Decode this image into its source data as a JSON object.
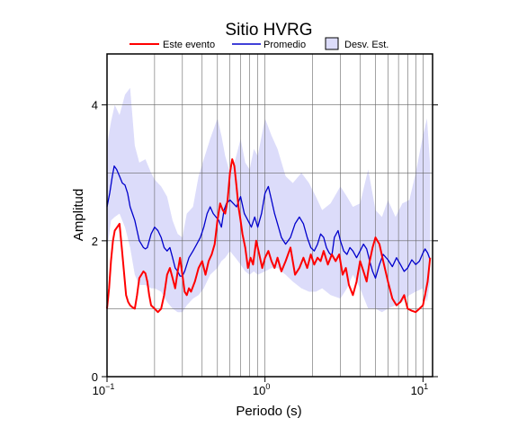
{
  "chart_data": {
    "type": "line",
    "title": "Sitio HVRG",
    "xlabel": "Periodo (s)",
    "ylabel": "Amplitud",
    "xscale": "log",
    "xlim": [
      0.1,
      11.5
    ],
    "ylim": [
      0,
      4.75
    ],
    "yticks": [
      {
        "value": 0,
        "label": "0"
      },
      {
        "value": 2,
        "label": "2"
      },
      {
        "value": 4,
        "label": "4"
      }
    ],
    "xticks": [
      {
        "value": 0.1,
        "base": "10",
        "exp": "−1"
      },
      {
        "value": 1,
        "base": "10",
        "exp": "0"
      },
      {
        "value": 10,
        "base": "10",
        "exp": "1"
      }
    ],
    "grid": true,
    "legend_position": "top",
    "legend": {
      "event": "Este evento",
      "mean": "Promedio",
      "std": "Desv. Est."
    },
    "colors": {
      "event": "#ff0000",
      "mean": "#0000cc",
      "std_fill": "#dcdcfa",
      "std_stroke": "#000000"
    },
    "std_band": {
      "x": [
        0.1,
        0.106,
        0.112,
        0.12,
        0.13,
        0.14,
        0.15,
        0.16,
        0.175,
        0.19,
        0.2,
        0.22,
        0.24,
        0.26,
        0.28,
        0.3,
        0.32,
        0.35,
        0.38,
        0.41,
        0.45,
        0.5,
        0.53,
        0.56,
        0.6,
        0.65,
        0.7,
        0.75,
        0.8,
        0.85,
        0.9,
        1.0,
        1.1,
        1.2,
        1.35,
        1.5,
        1.7,
        1.9,
        2.1,
        2.3,
        2.6,
        3.0,
        3.3,
        3.6,
        4.0,
        4.5,
        5.0,
        5.5,
        6.0,
        6.7,
        7.4,
        8.2,
        9.0,
        10.0,
        10.6,
        11.1
      ],
      "upper": [
        3.4,
        3.75,
        4.0,
        3.85,
        4.15,
        4.25,
        3.4,
        3.15,
        3.2,
        3.0,
        2.9,
        2.8,
        2.65,
        2.3,
        2.1,
        2.05,
        2.4,
        2.5,
        2.95,
        3.2,
        3.5,
        3.8,
        3.55,
        3.25,
        3.0,
        3.2,
        3.5,
        3.15,
        3.05,
        3.35,
        3.25,
        3.8,
        3.55,
        3.35,
        2.95,
        2.85,
        3.0,
        2.85,
        2.65,
        2.45,
        2.55,
        2.8,
        2.65,
        2.5,
        2.55,
        3.05,
        2.45,
        2.35,
        2.6,
        2.35,
        2.55,
        2.6,
        3.0,
        3.55,
        3.8,
        3.1
      ],
      "lower": [
        1.85,
        2.3,
        2.35,
        2.4,
        2.2,
        1.9,
        1.5,
        1.35,
        1.35,
        1.3,
        1.3,
        1.25,
        1.1,
        1.0,
        0.95,
        0.95,
        1.05,
        1.15,
        1.2,
        1.3,
        1.5,
        1.6,
        1.7,
        1.75,
        1.85,
        1.75,
        1.65,
        1.55,
        1.5,
        1.55,
        1.5,
        1.55,
        1.6,
        1.6,
        1.5,
        1.4,
        1.3,
        1.25,
        1.25,
        1.3,
        1.2,
        1.15,
        1.3,
        1.5,
        1.3,
        1.0,
        1.0,
        0.95,
        1.0,
        1.05,
        1.1,
        1.2,
        1.25,
        1.3,
        1.1,
        1.4
      ]
    },
    "series": [
      {
        "name": "Promedio",
        "key": "mean",
        "x": [
          0.1,
          0.104,
          0.108,
          0.111,
          0.115,
          0.12,
          0.125,
          0.13,
          0.135,
          0.14,
          0.145,
          0.15,
          0.155,
          0.16,
          0.165,
          0.17,
          0.175,
          0.18,
          0.19,
          0.2,
          0.21,
          0.22,
          0.23,
          0.24,
          0.25,
          0.26,
          0.27,
          0.28,
          0.29,
          0.3,
          0.31,
          0.32,
          0.33,
          0.35,
          0.37,
          0.39,
          0.41,
          0.43,
          0.45,
          0.47,
          0.49,
          0.51,
          0.53,
          0.55,
          0.57,
          0.6,
          0.63,
          0.66,
          0.7,
          0.74,
          0.78,
          0.82,
          0.86,
          0.9,
          0.95,
          1.0,
          1.05,
          1.1,
          1.15,
          1.2,
          1.27,
          1.35,
          1.45,
          1.55,
          1.65,
          1.75,
          1.85,
          1.95,
          2.05,
          2.15,
          2.25,
          2.35,
          2.45,
          2.55,
          2.65,
          2.75,
          2.9,
          3.0,
          3.15,
          3.3,
          3.45,
          3.6,
          3.8,
          4.0,
          4.2,
          4.4,
          4.6,
          4.8,
          5.0,
          5.3,
          5.6,
          6.0,
          6.4,
          6.8,
          7.2,
          7.6,
          8.0,
          8.5,
          9.0,
          9.5,
          10.0,
          10.3,
          10.7,
          11.1
        ],
        "y": [
          2.5,
          2.7,
          2.95,
          3.1,
          3.05,
          2.95,
          2.85,
          2.82,
          2.7,
          2.5,
          2.4,
          2.3,
          2.15,
          2.0,
          1.95,
          1.9,
          1.88,
          1.9,
          2.1,
          2.2,
          2.15,
          2.05,
          1.9,
          1.85,
          1.9,
          1.75,
          1.6,
          1.55,
          1.48,
          1.48,
          1.55,
          1.65,
          1.75,
          1.85,
          1.95,
          2.05,
          2.2,
          2.4,
          2.5,
          2.4,
          2.35,
          2.3,
          2.2,
          2.45,
          2.55,
          2.6,
          2.55,
          2.5,
          2.65,
          2.4,
          2.3,
          2.2,
          2.35,
          2.2,
          2.4,
          2.7,
          2.8,
          2.6,
          2.4,
          2.25,
          2.05,
          1.95,
          2.05,
          2.25,
          2.35,
          2.25,
          2.05,
          1.9,
          1.85,
          1.95,
          2.1,
          2.05,
          1.9,
          1.82,
          1.78,
          2.05,
          2.15,
          2.0,
          1.85,
          1.8,
          1.9,
          1.85,
          1.75,
          1.85,
          1.95,
          1.88,
          1.7,
          1.55,
          1.45,
          1.65,
          1.8,
          1.72,
          1.62,
          1.75,
          1.65,
          1.55,
          1.6,
          1.72,
          1.65,
          1.7,
          1.82,
          1.88,
          1.82,
          1.72
        ]
      },
      {
        "name": "Este evento",
        "key": "event",
        "x": [
          0.1,
          0.103,
          0.106,
          0.109,
          0.112,
          0.116,
          0.12,
          0.124,
          0.128,
          0.132,
          0.136,
          0.14,
          0.145,
          0.15,
          0.155,
          0.16,
          0.165,
          0.17,
          0.175,
          0.18,
          0.185,
          0.19,
          0.2,
          0.21,
          0.22,
          0.23,
          0.24,
          0.25,
          0.26,
          0.27,
          0.28,
          0.29,
          0.3,
          0.31,
          0.32,
          0.33,
          0.34,
          0.36,
          0.38,
          0.4,
          0.42,
          0.44,
          0.46,
          0.48,
          0.5,
          0.52,
          0.54,
          0.56,
          0.58,
          0.6,
          0.62,
          0.64,
          0.66,
          0.68,
          0.7,
          0.72,
          0.75,
          0.78,
          0.81,
          0.84,
          0.88,
          0.92,
          0.96,
          1.0,
          1.05,
          1.1,
          1.15,
          1.2,
          1.27,
          1.35,
          1.45,
          1.55,
          1.65,
          1.75,
          1.85,
          1.95,
          2.05,
          2.15,
          2.25,
          2.35,
          2.5,
          2.65,
          2.8,
          2.95,
          3.1,
          3.25,
          3.4,
          3.6,
          3.8,
          4.0,
          4.2,
          4.4,
          4.6,
          4.8,
          5.0,
          5.3,
          5.6,
          6.0,
          6.4,
          6.8,
          7.2,
          7.6,
          8.0,
          8.5,
          9.0,
          9.5,
          10.0,
          10.3,
          10.7,
          11.1
        ],
        "y": [
          1.0,
          1.3,
          1.7,
          2.0,
          2.15,
          2.2,
          2.25,
          1.9,
          1.55,
          1.2,
          1.1,
          1.05,
          1.02,
          1.0,
          1.2,
          1.45,
          1.5,
          1.55,
          1.52,
          1.4,
          1.2,
          1.05,
          1.0,
          0.95,
          1.0,
          1.2,
          1.5,
          1.6,
          1.45,
          1.3,
          1.55,
          1.75,
          1.5,
          1.25,
          1.2,
          1.3,
          1.25,
          1.4,
          1.6,
          1.7,
          1.5,
          1.7,
          1.8,
          1.95,
          2.3,
          2.55,
          2.45,
          2.4,
          2.6,
          3.0,
          3.2,
          3.1,
          2.8,
          2.5,
          2.3,
          2.1,
          1.9,
          1.6,
          1.75,
          1.65,
          2.0,
          1.8,
          1.6,
          1.75,
          1.85,
          1.7,
          1.6,
          1.75,
          1.55,
          1.7,
          1.9,
          1.5,
          1.6,
          1.75,
          1.6,
          1.8,
          1.65,
          1.75,
          1.7,
          1.85,
          1.65,
          1.8,
          1.7,
          1.8,
          1.5,
          1.6,
          1.35,
          1.2,
          1.4,
          1.7,
          1.55,
          1.4,
          1.7,
          1.9,
          2.05,
          1.95,
          1.7,
          1.4,
          1.15,
          1.05,
          1.1,
          1.2,
          1.0,
          0.97,
          0.95,
          1.0,
          1.05,
          1.2,
          1.4,
          1.75
        ]
      }
    ]
  }
}
